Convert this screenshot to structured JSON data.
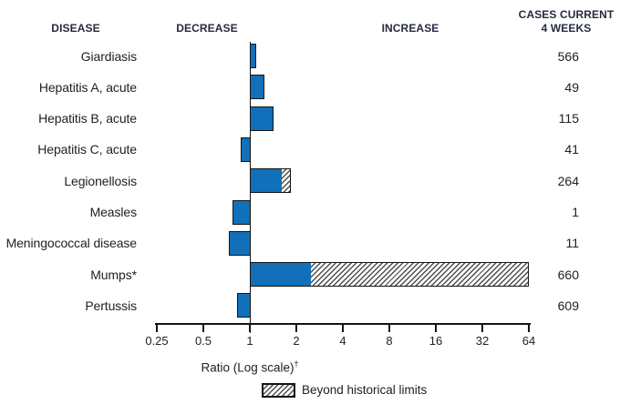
{
  "headers": {
    "disease": "DISEASE",
    "decrease": "DECREASE",
    "increase": "INCREASE",
    "cases_line1": "CASES CURRENT",
    "cases_line2": "4 WEEKS"
  },
  "chart_data": {
    "type": "bar",
    "orientation": "horizontal",
    "x_axis": {
      "label": "Ratio (Log scale)",
      "dagger": "†",
      "scale": "log2",
      "ticks": [
        "0.25",
        "0.5",
        "1",
        "2",
        "4",
        "8",
        "16",
        "32",
        "64"
      ],
      "range": [
        0.25,
        64
      ],
      "baseline": 1
    },
    "legend": {
      "beyond_label": "Beyond historical limits"
    },
    "rows": [
      {
        "disease": "Giardiasis",
        "ratio": 1.1,
        "beyond_end": null,
        "cases": "566"
      },
      {
        "disease": "Hepatitis A, acute",
        "ratio": 1.25,
        "beyond_end": null,
        "cases": "49"
      },
      {
        "disease": "Hepatitis B, acute",
        "ratio": 1.43,
        "beyond_end": null,
        "cases": "115"
      },
      {
        "disease": "Hepatitis C, acute",
        "ratio": 0.87,
        "beyond_end": null,
        "cases": "41"
      },
      {
        "disease": "Legionellosis",
        "ratio": 1.63,
        "beyond_end": 1.85,
        "cases": "264"
      },
      {
        "disease": "Measles",
        "ratio": 0.77,
        "beyond_end": null,
        "cases": "1"
      },
      {
        "disease": "Meningococcal disease",
        "ratio": 0.73,
        "beyond_end": null,
        "cases": "11"
      },
      {
        "disease": "Mumps*",
        "ratio": 2.5,
        "beyond_end": 64,
        "cases": "660"
      },
      {
        "disease": "Pertussis",
        "ratio": 0.83,
        "beyond_end": null,
        "cases": "609"
      }
    ],
    "colors": {
      "bar_fill": "#1170b9",
      "bar_border": "#141414",
      "hatch_line": "#4d4d4d",
      "header_text": "#262b40",
      "body_text": "#232020"
    }
  }
}
